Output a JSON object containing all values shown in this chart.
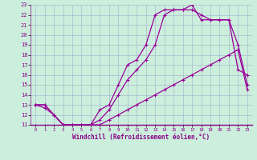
{
  "title": "Windchill (Refroidissement éolien,°C)",
  "bg_color": "#cceedd",
  "grid_color": "#aabbcc",
  "line_color": "#990099",
  "xlim": [
    -0.5,
    23.5
  ],
  "ylim": [
    11,
    23
  ],
  "xtick_labels": [
    "0",
    "1",
    "2",
    "3",
    "4",
    "5",
    "6",
    "7",
    "8",
    "9",
    "10",
    "11",
    "12",
    "13",
    "14",
    "15",
    "16",
    "17",
    "18",
    "19",
    "20",
    "21",
    "22",
    "23"
  ],
  "xtick_vals": [
    0,
    1,
    2,
    3,
    4,
    5,
    6,
    7,
    8,
    9,
    10,
    11,
    12,
    13,
    14,
    15,
    16,
    17,
    18,
    19,
    20,
    21,
    22,
    23
  ],
  "ytick_vals": [
    11,
    12,
    13,
    14,
    15,
    16,
    17,
    18,
    19,
    20,
    21,
    22,
    23
  ],
  "line1_x": [
    0,
    1,
    2,
    3,
    4,
    5,
    6,
    7,
    8,
    9,
    10,
    11,
    12,
    13,
    14,
    15,
    16,
    17,
    18,
    19,
    20,
    21,
    22,
    23
  ],
  "line1_y": [
    13.0,
    12.7,
    12.0,
    11.0,
    11.0,
    11.0,
    11.0,
    11.0,
    11.5,
    12.0,
    12.5,
    13.0,
    13.5,
    14.0,
    14.5,
    15.0,
    15.5,
    16.0,
    16.5,
    17.0,
    17.5,
    18.0,
    18.5,
    14.5
  ],
  "line2_x": [
    0,
    1,
    2,
    3,
    4,
    5,
    6,
    7,
    8,
    9,
    10,
    11,
    12,
    13,
    14,
    15,
    16,
    17,
    18,
    19,
    20,
    21,
    22,
    23
  ],
  "line2_y": [
    13.0,
    13.0,
    12.0,
    11.0,
    11.0,
    11.0,
    11.0,
    11.5,
    12.5,
    14.0,
    15.5,
    16.5,
    17.5,
    19.0,
    22.0,
    22.5,
    22.5,
    22.5,
    22.0,
    21.5,
    21.5,
    21.5,
    16.5,
    16.0
  ],
  "line3_x": [
    0,
    1,
    2,
    3,
    4,
    5,
    6,
    7,
    8,
    9,
    10,
    11,
    12,
    13,
    14,
    15,
    16,
    17,
    18,
    19,
    20,
    21,
    22,
    23
  ],
  "line3_y": [
    13.0,
    13.0,
    12.0,
    11.0,
    11.0,
    11.0,
    11.0,
    12.5,
    13.0,
    15.0,
    17.0,
    17.5,
    19.0,
    22.0,
    22.5,
    22.5,
    22.5,
    23.0,
    21.5,
    21.5,
    21.5,
    21.5,
    19.0,
    15.0
  ]
}
